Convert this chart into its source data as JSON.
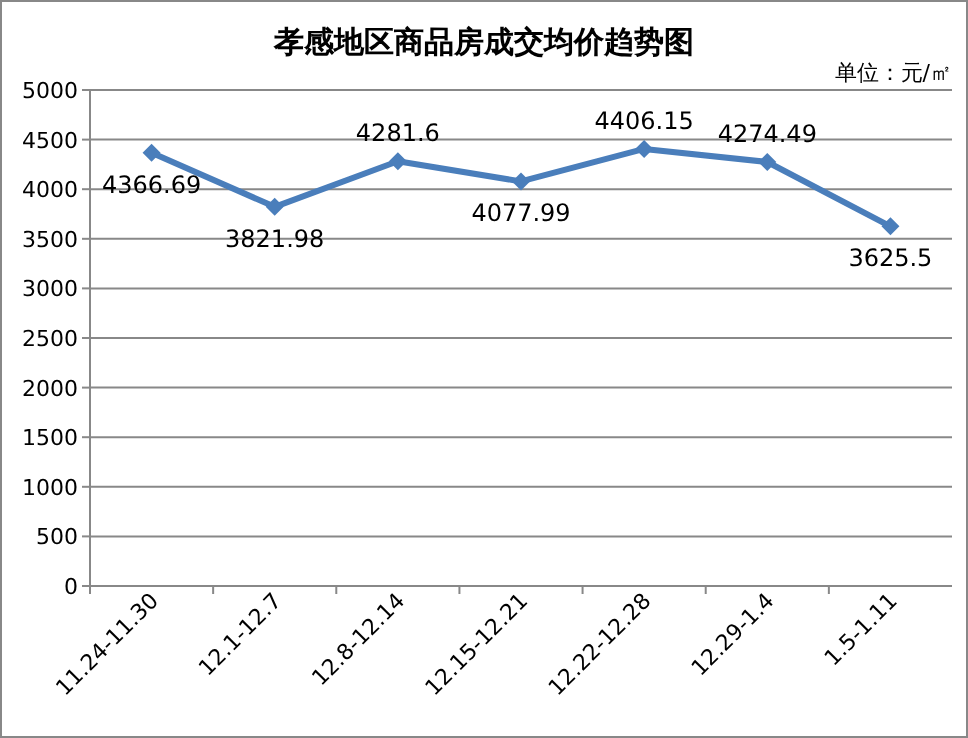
{
  "chart_data": {
    "type": "line",
    "title": "孝感地区商品房成交均价趋势图",
    "annotations": [
      "单位：元/㎡"
    ],
    "categories": [
      "11.24-11.30",
      "12.1-12.7",
      "12.8-12.14",
      "12.15-12.21",
      "12.22-12.28",
      "12.29-1.4",
      "1.5-1.11"
    ],
    "series": [
      {
        "color": "#4a7ebb",
        "values": [
          4366.69,
          3821.98,
          4281.6,
          4077.99,
          4406.15,
          4274.49,
          3625.5
        ]
      }
    ],
    "ylim": [
      0,
      5000
    ],
    "yticks": [
      0,
      500,
      1000,
      1500,
      2000,
      2500,
      3000,
      3500,
      4000,
      4500,
      5000
    ],
    "grid": "y",
    "marker": "diamond",
    "line_style": "solid",
    "data_labels": true
  }
}
